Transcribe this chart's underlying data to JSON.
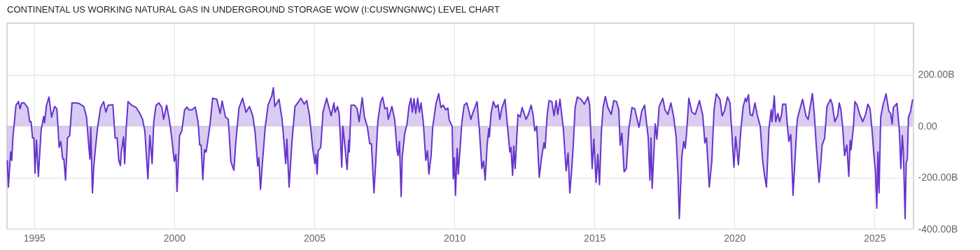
{
  "chart_data": {
    "type": "area",
    "title": "CONTINENTAL US WORKING NATURAL GAS IN UNDERGROUND STORAGE WOW (I:CUSWNGNWC) LEVEL CHART",
    "xlim": [
      1994.03,
      2026.39
    ],
    "xticks": [
      1995,
      2000,
      2005,
      2010,
      2015,
      2020,
      2025
    ],
    "ylim": [
      -400,
      400
    ],
    "yticks": [
      {
        "value": -400,
        "label": "-400.00B"
      },
      {
        "value": -200,
        "label": "-200.00B"
      },
      {
        "value": 0,
        "label": "0.00"
      },
      {
        "value": 200,
        "label": "200.00B"
      }
    ],
    "grid": true,
    "series": [
      {
        "color": "#6633cc",
        "x": [
          1994.04,
          1994.08,
          1994.16,
          1994.2,
          1994.24,
          1994.35,
          1994.44,
          1994.5,
          1994.55,
          1994.64,
          1994.77,
          1994.84,
          1994.89,
          1994.94,
          1994.99,
          1995.03,
          1995.08,
          1995.15,
          1995.25,
          1995.34,
          1995.37,
          1995.44,
          1995.53,
          1995.62,
          1995.73,
          1995.81,
          1995.85,
          1995.89,
          1995.95,
          1996.02,
          1996.06,
          1996.12,
          1996.19,
          1996.27,
          1996.35,
          1996.48,
          1996.6,
          1996.77,
          1996.87,
          1996.94,
          1996.99,
          1997.02,
          1997.08,
          1997.13,
          1997.19,
          1997.27,
          1997.37,
          1997.48,
          1997.56,
          1997.64,
          1997.81,
          1997.89,
          1997.96,
          1998.02,
          1998.08,
          1998.11,
          1998.19,
          1998.23,
          1998.29,
          1998.35,
          1998.48,
          1998.64,
          1998.77,
          1998.87,
          1998.95,
          1999.06,
          1999.13,
          1999.21,
          1999.27,
          1999.35,
          1999.45,
          1999.56,
          1999.62,
          1999.73,
          1999.83,
          1999.92,
          2000.0,
          2000.06,
          2000.1,
          2000.19,
          2000.27,
          2000.37,
          2000.45,
          2000.52,
          2000.64,
          2000.75,
          2000.85,
          2000.91,
          2000.96,
          2001.02,
          2001.08,
          2001.14,
          2001.27,
          2001.37,
          2001.52,
          2001.64,
          2001.71,
          2001.83,
          2001.93,
          2002.02,
          2002.13,
          2002.19,
          2002.31,
          2002.44,
          2002.56,
          2002.69,
          2002.81,
          2002.89,
          2002.98,
          2003.02,
          2003.08,
          2003.14,
          2003.25,
          2003.35,
          2003.48,
          2003.54,
          2003.59,
          2003.74,
          2003.85,
          2003.98,
          2004.02,
          2004.1,
          2004.2,
          2004.31,
          2004.44,
          2004.52,
          2004.64,
          2004.73,
          2004.83,
          2004.94,
          2005.02,
          2005.06,
          2005.1,
          2005.14,
          2005.23,
          2005.31,
          2005.44,
          2005.6,
          2005.7,
          2005.74,
          2005.83,
          2005.89,
          2005.98,
          2006.02,
          2006.1,
          2006.17,
          2006.23,
          2006.25,
          2006.31,
          2006.44,
          2006.53,
          2006.6,
          2006.71,
          2006.79,
          2006.89,
          2006.98,
          2007.04,
          2007.13,
          2007.2,
          2007.27,
          2007.37,
          2007.44,
          2007.52,
          2007.6,
          2007.64,
          2007.77,
          2007.87,
          2007.95,
          2007.99,
          2008.04,
          2008.1,
          2008.14,
          2008.23,
          2008.31,
          2008.38,
          2008.45,
          2008.5,
          2008.56,
          2008.62,
          2008.69,
          2008.75,
          2008.81,
          2008.89,
          2008.98,
          2009.04,
          2009.09,
          2009.17,
          2009.23,
          2009.34,
          2009.44,
          2009.52,
          2009.6,
          2009.69,
          2009.77,
          2009.81,
          2009.92,
          2009.96,
          2010.0,
          2010.04,
          2010.1,
          2010.14,
          2010.23,
          2010.27,
          2010.35,
          2010.44,
          2010.5,
          2010.59,
          2010.64,
          2010.81,
          2010.89,
          2010.98,
          2011.04,
          2011.1,
          2011.17,
          2011.23,
          2011.25,
          2011.31,
          2011.39,
          2011.48,
          2011.56,
          2011.62,
          2011.7,
          2011.81,
          2011.89,
          2011.98,
          2012.02,
          2012.08,
          2012.12,
          2012.17,
          2012.25,
          2012.27,
          2012.35,
          2012.42,
          2012.56,
          2012.64,
          2012.74,
          2012.81,
          2012.87,
          2012.94,
          2013.03,
          2013.12,
          2013.2,
          2013.24,
          2013.31,
          2013.38,
          2013.48,
          2013.56,
          2013.63,
          2013.69,
          2013.77,
          2013.89,
          2013.99,
          2014.06,
          2014.12,
          2014.18,
          2014.25,
          2014.31,
          2014.39,
          2014.52,
          2014.64,
          2014.77,
          2014.83,
          2014.92,
          2014.98,
          2015.06,
          2015.12,
          2015.18,
          2015.25,
          2015.31,
          2015.39,
          2015.48,
          2015.6,
          2015.69,
          2015.79,
          2015.87,
          2015.92,
          2015.98,
          2016.06,
          2016.14,
          2016.23,
          2016.34,
          2016.44,
          2016.59,
          2016.69,
          2016.79,
          2016.92,
          2016.98,
          2017.02,
          2017.06,
          2017.12,
          2017.17,
          2017.23,
          2017.31,
          2017.44,
          2017.52,
          2017.62,
          2017.73,
          2017.83,
          2017.92,
          2017.98,
          2018.03,
          2018.12,
          2018.19,
          2018.24,
          2018.29,
          2018.37,
          2018.48,
          2018.6,
          2018.75,
          2018.87,
          2018.94,
          2019.0,
          2019.1,
          2019.19,
          2019.27,
          2019.35,
          2019.48,
          2019.56,
          2019.64,
          2019.75,
          2019.84,
          2019.89,
          2019.98,
          2020.04,
          2020.14,
          2020.23,
          2020.31,
          2020.39,
          2020.43,
          2020.5,
          2020.56,
          2020.64,
          2020.73,
          2020.81,
          2020.92,
          2021.0,
          2021.06,
          2021.14,
          2021.23,
          2021.31,
          2021.34,
          2021.42,
          2021.47,
          2021.55,
          2021.61,
          2021.68,
          2021.72,
          2021.83,
          2021.89,
          2021.94,
          2022.01,
          2022.09,
          2022.24,
          2022.36,
          2022.43,
          2022.55,
          2022.63,
          2022.69,
          2022.78,
          2022.85,
          2022.92,
          2023.02,
          2023.08,
          2023.13,
          2023.22,
          2023.3,
          2023.43,
          2023.49,
          2023.58,
          2023.68,
          2023.74,
          2023.8,
          2023.86,
          2023.93,
          2024.01,
          2024.08,
          2024.13,
          2024.16,
          2024.24,
          2024.3,
          2024.38,
          2024.47,
          2024.58,
          2024.68,
          2024.76,
          2024.84,
          2024.92,
          2024.98,
          2025.03,
          2025.08,
          2025.12,
          2025.16,
          2025.22,
          2025.3,
          2025.41,
          2025.51,
          2025.57,
          2025.63,
          2025.67,
          2025.8,
          2025.88,
          2025.94,
          2025.99,
          2026.03,
          2026.09,
          2026.13,
          2026.17,
          2026.21,
          2026.28,
          2026.36
        ],
        "values": [
          -133,
          -237,
          -101,
          -133,
          -46,
          81,
          95,
          67,
          90,
          90,
          72,
          17,
          17,
          -46,
          -46,
          -183,
          -55,
          -196,
          -15,
          37,
          13,
          81,
          113,
          35,
          76,
          67,
          -1,
          -83,
          -60,
          -128,
          -128,
          -210,
          -46,
          -37,
          90,
          90,
          88,
          76,
          35,
          -65,
          -128,
          -5,
          -260,
          -155,
          -83,
          -1,
          72,
          95,
          54,
          81,
          83,
          -46,
          -46,
          -133,
          -154,
          -101,
          -42,
          -146,
          -1,
          95,
          81,
          72,
          49,
          26,
          -19,
          -205,
          -37,
          -146,
          17,
          81,
          90,
          72,
          26,
          81,
          22,
          -55,
          -137,
          -110,
          -254,
          -37,
          -19,
          63,
          74,
          63,
          63,
          74,
          17,
          -74,
          -74,
          -208,
          -92,
          -101,
          -1,
          108,
          104,
          49,
          97,
          35,
          26,
          -137,
          -172,
          -74,
          70,
          108,
          54,
          76,
          37,
          -28,
          -155,
          -124,
          -246,
          -155,
          -1,
          81,
          117,
          149,
          76,
          104,
          26,
          -146,
          -51,
          -237,
          -65,
          76,
          95,
          108,
          85,
          99,
          40,
          -83,
          -146,
          -110,
          -187,
          -96,
          -83,
          54,
          108,
          40,
          90,
          54,
          76,
          45,
          -160,
          -1,
          -87,
          -169,
          -55,
          -101,
          81,
          81,
          67,
          17,
          110,
          35,
          -1,
          -69,
          -69,
          -260,
          -128,
          22,
          95,
          112,
          67,
          72,
          26,
          76,
          26,
          -92,
          -115,
          -60,
          -274,
          -119,
          -28,
          8,
          76,
          108,
          54,
          106,
          49,
          108,
          54,
          90,
          17,
          -133,
          -96,
          -187,
          -115,
          -1,
          85,
          126,
          72,
          81,
          63,
          70,
          26,
          -1,
          -205,
          -124,
          -269,
          -87,
          -187,
          -46,
          17,
          81,
          90,
          67,
          26,
          45,
          95,
          -10,
          -165,
          -137,
          -210,
          -74,
          -10,
          -42,
          49,
          95,
          72,
          83,
          26,
          72,
          104,
          8,
          -101,
          -83,
          -192,
          -78,
          -165,
          -1,
          45,
          35,
          72,
          26,
          45,
          81,
          45,
          -19,
          -1,
          -199,
          -117,
          -65,
          -87,
          40,
          99,
          95,
          40,
          99,
          45,
          104,
          -10,
          -174,
          -105,
          -260,
          -183,
          -65,
          72,
          113,
          104,
          85,
          113,
          81,
          -165,
          -51,
          -219,
          -110,
          -228,
          -19,
          72,
          115,
          72,
          45,
          99,
          95,
          63,
          -74,
          -28,
          -178,
          -165,
          -10,
          72,
          67,
          -5,
          58,
          81,
          -46,
          -210,
          -46,
          -242,
          -110,
          8,
          -51,
          76,
          108,
          63,
          45,
          90,
          35,
          -46,
          -183,
          -360,
          -119,
          -60,
          -87,
          -28,
          108,
          54,
          45,
          99,
          40,
          -65,
          -46,
          -237,
          -137,
          63,
          125,
          104,
          40,
          58,
          113,
          90,
          -1,
          -160,
          -42,
          -151,
          -10,
          76,
          108,
          95,
          122,
          45,
          40,
          90,
          45,
          -1,
          -128,
          -183,
          -237,
          -10,
          63,
          17,
          117,
          17,
          49,
          17,
          45,
          85,
          85,
          -1,
          -60,
          -33,
          -269,
          26,
          76,
          104,
          40,
          26,
          67,
          126,
          45,
          -78,
          -219,
          -146,
          -74,
          -46,
          76,
          104,
          85,
          17,
          40,
          90,
          63,
          -1,
          -115,
          -74,
          -196,
          -55,
          -92,
          -10,
          95,
          81,
          45,
          17,
          45,
          85,
          67,
          -28,
          -119,
          -174,
          -319,
          -101,
          -260,
          35,
          81,
          125,
          58,
          49,
          8,
          72,
          88,
          -10,
          -165,
          -37,
          -101,
          -360,
          -142,
          -128,
          35,
          54,
          104
        ]
      }
    ]
  }
}
